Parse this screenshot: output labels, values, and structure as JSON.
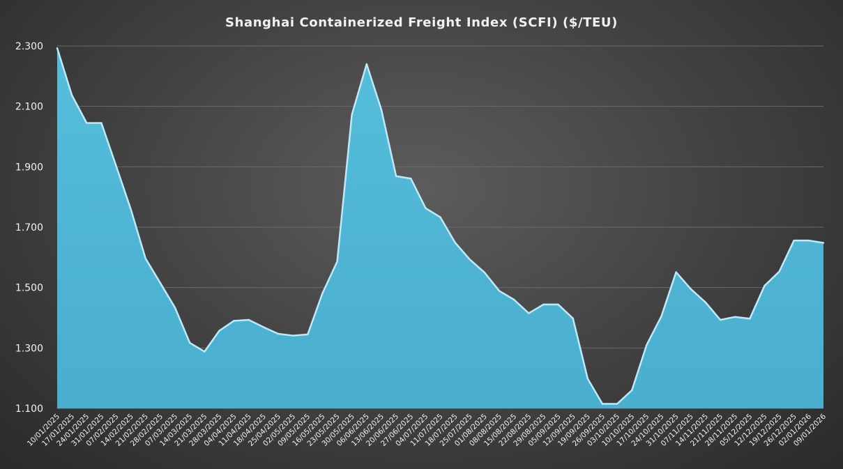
{
  "chart_data": {
    "type": "area",
    "title": "Shanghai Containerized Freight Index (SCFI) ($/TEU)",
    "xlabel": "",
    "ylabel": "",
    "ylim": [
      1100,
      2300
    ],
    "y_ticks": [
      1100,
      1300,
      1500,
      1700,
      1900,
      2100,
      2300
    ],
    "y_tick_labels": [
      "1.100",
      "1.300",
      "1.500",
      "1.700",
      "1.900",
      "2.100",
      "2.300"
    ],
    "grid": true,
    "legend": "none",
    "colors": {
      "fill": "#4fb6d6",
      "top_edge": "#bfe9f7",
      "grid": "#6a6a6a",
      "text": "#f2f2f2"
    },
    "x": [
      "10/01/2025",
      "17/01/2025",
      "24/01/2025",
      "31/01/2025",
      "07/02/2025",
      "14/02/2025",
      "21/02/2025",
      "28/02/2025",
      "07/03/2025",
      "14/03/2025",
      "21/03/2025",
      "28/03/2025",
      "04/04/2025",
      "11/04/2025",
      "18/04/2025",
      "25/04/2025",
      "02/05/2025",
      "09/05/2025",
      "16/05/2025",
      "23/05/2025",
      "30/05/2025",
      "06/06/2025",
      "13/06/2025",
      "20/06/2025",
      "27/06/2025",
      "04/07/2025",
      "11/07/2025",
      "18/07/2025",
      "25/07/2025",
      "01/08/2025",
      "08/08/2025",
      "15/08/2025",
      "22/08/2025",
      "29/08/2025",
      "05/09/2025",
      "12/09/2025",
      "19/09/2025",
      "26/09/2025",
      "03/10/2025",
      "10/10/2025",
      "17/10/2025",
      "24/10/2025",
      "31/10/2025",
      "07/11/2025",
      "14/11/2025",
      "21/11/2025",
      "28/11/2025",
      "05/12/2025",
      "12/12/2025",
      "19/12/2025",
      "26/12/2025",
      "02/01/2026",
      "09/01/2026"
    ],
    "x_tick_labels": [
      "10/01/2025",
      "17/01/2025",
      "24/01/2025",
      "31/01/2025",
      "07/02/2025",
      "14/02/2025",
      "21/02/2025",
      "28/02/2025",
      "07/03/2025",
      "14/03/2025",
      "21/03/2025",
      "28/03/2025",
      "04/04/2025",
      "11/04/2025",
      "18/04/2025",
      "25/04/2025",
      "02/05/2025",
      "09/05/2025",
      "16/05/2025",
      "23/05/2025",
      "30/05/2025",
      "06/06/2025",
      "13/06/2025",
      "20/06/2025",
      "27/06/2025",
      "04/07/2025",
      "11/07/2025",
      "18/07/2025",
      "25/07/2025",
      "01/08/2025",
      "08/08/2025",
      "15/08/2025",
      "22/08/2025",
      "29/08/2025",
      "05/09/2025",
      "12/09/2025",
      "19/09/2025",
      "26/09/2025",
      "03/10/2025",
      "10/10/2025",
      "17/10/2025",
      "24/10/2025",
      "31/10/2025",
      "07/11/2025",
      "14/11/2025",
      "21/11/2025",
      "28/11/2025",
      "05/12/2025",
      "12/12/2025",
      "19/12/2025",
      "26/12/2025",
      "02/01/2026",
      "09/01/2026"
    ],
    "series": [
      {
        "values": [
          2293,
          2137,
          2045,
          2045,
          1903,
          1759,
          1596,
          1515,
          1433,
          1317,
          1288,
          1357,
          1390,
          1393,
          1369,
          1347,
          1341,
          1345,
          1481,
          1586,
          2073,
          2240,
          2089,
          1869,
          1861,
          1763,
          1733,
          1649,
          1593,
          1550,
          1489,
          1460,
          1415,
          1444,
          1444,
          1398,
          1198,
          1115,
          1115,
          1160,
          1310,
          1405,
          1551,
          1495,
          1451,
          1393,
          1403,
          1397,
          1506,
          1553,
          1656,
          1656,
          1648
        ]
      }
    ]
  }
}
